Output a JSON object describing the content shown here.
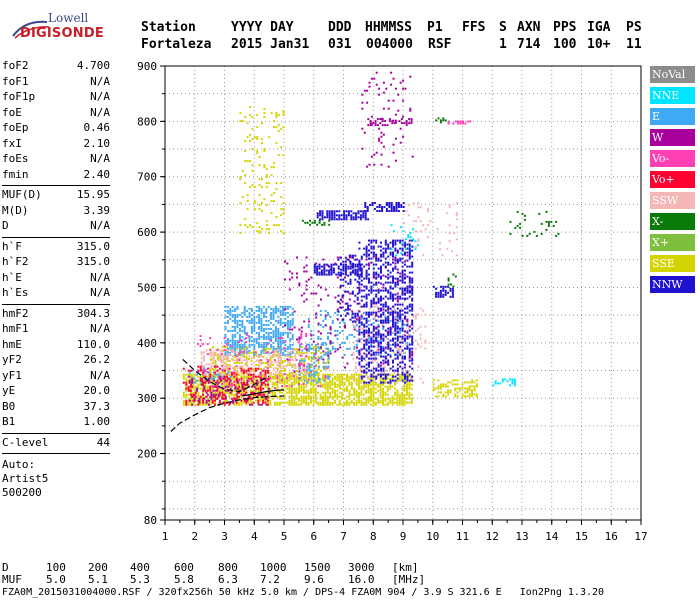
{
  "logo": {
    "line1": "Lowell",
    "line2": "DIGISONDE"
  },
  "header": {
    "labels": [
      "Station",
      "YYYY DAY",
      "DDD",
      "HHMMSS",
      "P1",
      "FFS",
      "S",
      "AXN",
      "PPS",
      "IGA",
      "PS"
    ],
    "values": [
      "Fortaleza",
      "2015 Jan31",
      "031",
      "004000",
      "RSF",
      "",
      "1",
      "714",
      "100",
      "10+",
      "11"
    ]
  },
  "params": [
    {
      "group": [
        {
          "name": "foF2",
          "value": "4.700"
        },
        {
          "name": "foF1",
          "value": "N/A"
        },
        {
          "name": "foF1p",
          "value": "N/A"
        },
        {
          "name": "foE",
          "value": "N/A"
        },
        {
          "name": "foEp",
          "value": "0.46"
        },
        {
          "name": "fxI",
          "value": "2.10"
        },
        {
          "name": "foEs",
          "value": "N/A"
        },
        {
          "name": "fmin",
          "value": "2.40"
        }
      ]
    },
    {
      "group": [
        {
          "name": "MUF(D)",
          "value": "15.95"
        },
        {
          "name": "M(D)",
          "value": "3.39"
        },
        {
          "name": "D",
          "value": "N/A"
        }
      ]
    },
    {
      "group": [
        {
          "name": "h`F",
          "value": "315.0"
        },
        {
          "name": "h`F2",
          "value": "315.0"
        },
        {
          "name": "h`E",
          "value": "N/A"
        },
        {
          "name": "h`Es",
          "value": "N/A"
        }
      ]
    },
    {
      "group": [
        {
          "name": "hmF2",
          "value": "304.3"
        },
        {
          "name": "hmF1",
          "value": "N/A"
        },
        {
          "name": "hmE",
          "value": "110.0"
        },
        {
          "name": "yF2",
          "value": "26.2"
        },
        {
          "name": "yF1",
          "value": "N/A"
        },
        {
          "name": "yE",
          "value": "20.0"
        },
        {
          "name": "B0",
          "value": "37.3"
        },
        {
          "name": "B1",
          "value": "1.00"
        }
      ]
    },
    {
      "group": [
        {
          "name": "C-level",
          "value": "44"
        }
      ]
    }
  ],
  "auto": {
    "line1": "Auto:",
    "line2": "Artist5",
    "line3": "500200"
  },
  "legend": [
    {
      "label": "NoVal",
      "color": "#8c8c8c"
    },
    {
      "label": "NNE",
      "color": "#00e5ff"
    },
    {
      "label": "E",
      "color": "#3fa9f5"
    },
    {
      "label": "W",
      "color": "#a8009c"
    },
    {
      "label": "Vo-",
      "color": "#ff3fb4"
    },
    {
      "label": "Vo+",
      "color": "#ff0030"
    },
    {
      "label": "SSW",
      "color": "#f4b6b6"
    },
    {
      "label": "X-",
      "color": "#0a7a0a"
    },
    {
      "label": "X+",
      "color": "#7fbf3f"
    },
    {
      "label": "SSE",
      "color": "#d4d400"
    },
    {
      "label": "NNW",
      "color": "#2010d0"
    }
  ],
  "footer": {
    "d_label": "D",
    "d_values": [
      "100",
      "200",
      "400",
      "600",
      "800",
      "1000",
      "1500",
      "3000",
      "[km]"
    ],
    "muf_label": "MUF",
    "muf_values": [
      "5.0",
      "5.1",
      "5.3",
      "5.8",
      "6.3",
      "7.2",
      "9.6",
      "16.0",
      "[MHz]"
    ],
    "file_line": "FZA0M_2015031004000.RSF / 320fx256h 50 kHz 5.0 km / DPS-4 FZA0M 904 / 3.9 S 321.6 E   Ion2Png 1.3.20"
  },
  "chart_data": {
    "type": "scatter",
    "title": "",
    "xlabel": "",
    "ylabel": "",
    "xlim": [
      1,
      17
    ],
    "ylim": [
      80,
      900
    ],
    "xticks": [
      1,
      2,
      3,
      4,
      5,
      6,
      7,
      8,
      9,
      10,
      11,
      12,
      13,
      14,
      15,
      16,
      17
    ],
    "yticks": [
      80,
      200,
      300,
      400,
      500,
      600,
      700,
      800,
      900
    ],
    "grid": true,
    "legend_position": "right",
    "clusters": [
      {
        "series": "SSE",
        "color": "#d4d400",
        "x": [
          1.6,
          9.3
        ],
        "y": [
          290,
          345
        ],
        "density": 0.7
      },
      {
        "series": "SSE",
        "color": "#d4d400",
        "x": [
          2.5,
          6.5
        ],
        "y": [
          340,
          395
        ],
        "density": 0.35
      },
      {
        "series": "SSE",
        "color": "#d4d400",
        "x": [
          3.5,
          5.0
        ],
        "y": [
          600,
          830
        ],
        "density": 0.12
      },
      {
        "series": "SSE",
        "color": "#d4d400",
        "x": [
          10.0,
          11.5
        ],
        "y": [
          305,
          335
        ],
        "density": 0.5
      },
      {
        "series": "E",
        "color": "#3fa9f5",
        "x": [
          3.0,
          5.3
        ],
        "y": [
          380,
          470
        ],
        "density": 0.55
      },
      {
        "series": "E",
        "color": "#3fa9f5",
        "x": [
          5.8,
          9.2
        ],
        "y": [
          380,
          460
        ],
        "density": 0.18
      },
      {
        "series": "E",
        "color": "#3fa9f5",
        "x": [
          5.5,
          6.5
        ],
        "y": [
          330,
          400
        ],
        "density": 0.25
      },
      {
        "series": "E",
        "color": "#3fa9f5",
        "x": [
          1.8,
          3.2
        ],
        "y": [
          330,
          360
        ],
        "density": 0.3
      },
      {
        "series": "SSW",
        "color": "#f4b6b6",
        "x": [
          2.2,
          5.8
        ],
        "y": [
          345,
          390
        ],
        "density": 0.35
      },
      {
        "series": "SSW",
        "color": "#f4b6b6",
        "x": [
          7.3,
          9.8
        ],
        "y": [
          330,
          470
        ],
        "density": 0.15
      },
      {
        "series": "SSW",
        "color": "#f4b6b6",
        "x": [
          9.0,
          10.8
        ],
        "y": [
          560,
          660
        ],
        "density": 0.06
      },
      {
        "series": "W",
        "color": "#a8009c",
        "x": [
          1.8,
          4.5
        ],
        "y": [
          290,
          340
        ],
        "density": 0.25
      },
      {
        "series": "W",
        "color": "#a8009c",
        "x": [
          7.6,
          9.3
        ],
        "y": [
          720,
          890
        ],
        "density": 0.06
      },
      {
        "series": "W",
        "color": "#a8009c",
        "x": [
          5.0,
          9.3
        ],
        "y": [
          350,
          560
        ],
        "density": 0.06
      },
      {
        "series": "W",
        "color": "#a8009c",
        "x": [
          7.8,
          9.3
        ],
        "y": [
          795,
          808
        ],
        "density": 0.35
      },
      {
        "series": "Vo+",
        "color": "#ff0030",
        "x": [
          1.6,
          4.5
        ],
        "y": [
          290,
          360
        ],
        "density": 0.25
      },
      {
        "series": "Vo-",
        "color": "#ff3fb4",
        "x": [
          2.0,
          6.5
        ],
        "y": [
          320,
          420
        ],
        "density": 0.08
      },
      {
        "series": "Vo-",
        "color": "#ff3fb4",
        "x": [
          10.5,
          11.3
        ],
        "y": [
          798,
          804
        ],
        "density": 0.5
      },
      {
        "series": "NNW",
        "color": "#2010d0",
        "x": [
          7.5,
          9.3
        ],
        "y": [
          330,
          590
        ],
        "density": 0.4
      },
      {
        "series": "NNW",
        "color": "#2010d0",
        "x": [
          6.1,
          7.8
        ],
        "y": [
          625,
          640
        ],
        "density": 0.7
      },
      {
        "series": "NNW",
        "color": "#2010d0",
        "x": [
          7.7,
          9.0
        ],
        "y": [
          640,
          655
        ],
        "density": 0.6
      },
      {
        "series": "NNW",
        "color": "#2010d0",
        "x": [
          6.0,
          7.6
        ],
        "y": [
          525,
          545
        ],
        "density": 0.6
      },
      {
        "series": "NNW",
        "color": "#2010d0",
        "x": [
          6.8,
          7.5
        ],
        "y": [
          440,
          560
        ],
        "density": 0.25
      },
      {
        "series": "NNW",
        "color": "#2010d0",
        "x": [
          10.0,
          10.7
        ],
        "y": [
          485,
          505
        ],
        "density": 0.6
      },
      {
        "series": "X-",
        "color": "#0a7a0a",
        "x": [
          12.5,
          14.2
        ],
        "y": [
          595,
          640
        ],
        "density": 0.15
      },
      {
        "series": "X-",
        "color": "#0a7a0a",
        "x": [
          10.0,
          10.5
        ],
        "y": [
          800,
          808
        ],
        "density": 0.5
      },
      {
        "series": "X-",
        "color": "#0a7a0a",
        "x": [
          10.5,
          10.8
        ],
        "y": [
          500,
          530
        ],
        "density": 0.3
      },
      {
        "series": "X-",
        "color": "#0a7a0a",
        "x": [
          5.6,
          6.5
        ],
        "y": [
          615,
          625
        ],
        "density": 0.35
      },
      {
        "series": "NNE",
        "color": "#00e5ff",
        "x": [
          12.0,
          12.8
        ],
        "y": [
          325,
          338
        ],
        "density": 0.4
      },
      {
        "series": "NNE",
        "color": "#00e5ff",
        "x": [
          8.5,
          9.5
        ],
        "y": [
          560,
          620
        ],
        "density": 0.06
      }
    ],
    "curves": [
      {
        "name": "",
        "style": "dashed",
        "x": [
          1.2,
          1.5,
          2.0,
          2.5,
          3.0,
          3.5,
          4.0,
          4.5,
          5.0
        ],
        "y": [
          240,
          255,
          270,
          283,
          291,
          297,
          301,
          303,
          304
        ]
      },
      {
        "name": "",
        "style": "solid",
        "x": [
          3.6,
          4.0,
          4.4,
          4.7,
          5.0
        ],
        "y": [
          304,
          308,
          312,
          314,
          315
        ]
      },
      {
        "name": "",
        "style": "dashed",
        "x": [
          1.6,
          2.0,
          2.5,
          3.0,
          3.5,
          4.0,
          4.5
        ],
        "y": [
          370,
          350,
          330,
          316,
          312,
          325,
          340
        ]
      }
    ]
  }
}
